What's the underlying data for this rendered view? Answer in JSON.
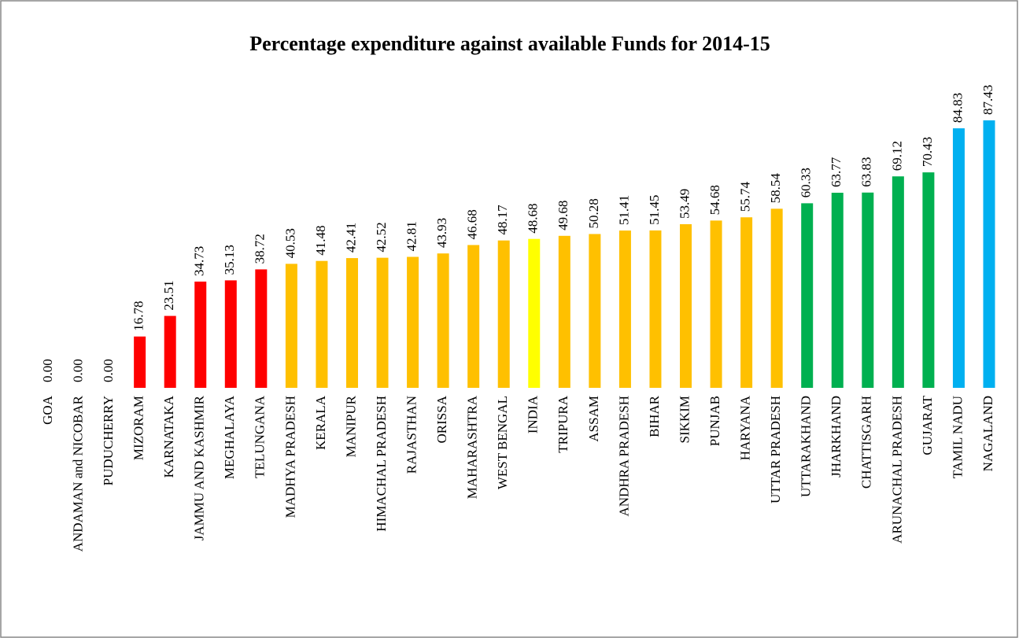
{
  "chart_data": {
    "type": "bar",
    "title": "Percentage expenditure against available Funds for 2014-15",
    "categories": [
      "GOA",
      "ANDAMAN and NICOBAR",
      "PUDUCHERRY",
      "MIZORAM",
      "KARNATAKA",
      "JAMMU AND KASHMIR",
      "MEGHALAYA",
      "TELUNGANA",
      "MADHYA PRADESH",
      "KERALA",
      "MANIPUR",
      "HIMACHAL PRADESH",
      "RAJASTHAN",
      "ORISSA",
      "MAHARASHTRA",
      "WEST BENGAL",
      "INDIA",
      "TRIPURA",
      "ASSAM",
      "ANDHRA PRADESH",
      "BIHAR",
      "SIKKIM",
      "PUNJAB",
      "HARYANA",
      "UTTAR PRADESH",
      "UTTARAKHAND",
      "JHARKHAND",
      "CHATTISGARH",
      "ARUNACHAL PRADESH",
      "GUJARAT",
      "TAMIL NADU",
      "NAGALAND"
    ],
    "values": [
      0,
      0,
      0,
      16.78,
      23.51,
      34.73,
      35.13,
      38.72,
      40.53,
      41.48,
      42.41,
      42.52,
      42.81,
      43.93,
      46.68,
      48.17,
      48.68,
      49.68,
      50.28,
      51.41,
      51.45,
      53.49,
      54.68,
      55.74,
      58.54,
      60.33,
      63.77,
      63.83,
      69.12,
      70.43,
      84.83,
      87.43
    ],
    "value_labels": [
      "0.00",
      "0.00",
      "0.00",
      "16.78",
      "23.51",
      "34.73",
      "35.13",
      "38.72",
      "40.53",
      "41.48",
      "42.41",
      "42.52",
      "42.81",
      "43.93",
      "46.68",
      "48.17",
      "48.68",
      "49.68",
      "50.28",
      "51.41",
      "51.45",
      "53.49",
      "54.68",
      "55.74",
      "58.54",
      "60.33",
      "63.77",
      "63.83",
      "69.12",
      "70.43",
      "84.83",
      "87.43"
    ],
    "colors": [
      "#ff0000",
      "#ff0000",
      "#ff0000",
      "#ff0000",
      "#ff0000",
      "#ff0000",
      "#ff0000",
      "#ff0000",
      "#ffc000",
      "#ffc000",
      "#ffc000",
      "#ffc000",
      "#ffc000",
      "#ffc000",
      "#ffc000",
      "#ffc000",
      "#ffff00",
      "#ffc000",
      "#ffc000",
      "#ffc000",
      "#ffc000",
      "#ffc000",
      "#ffc000",
      "#ffc000",
      "#ffc000",
      "#00b050",
      "#00b050",
      "#00b050",
      "#00b050",
      "#00b050",
      "#00b0f0",
      "#00b0f0"
    ]
  }
}
